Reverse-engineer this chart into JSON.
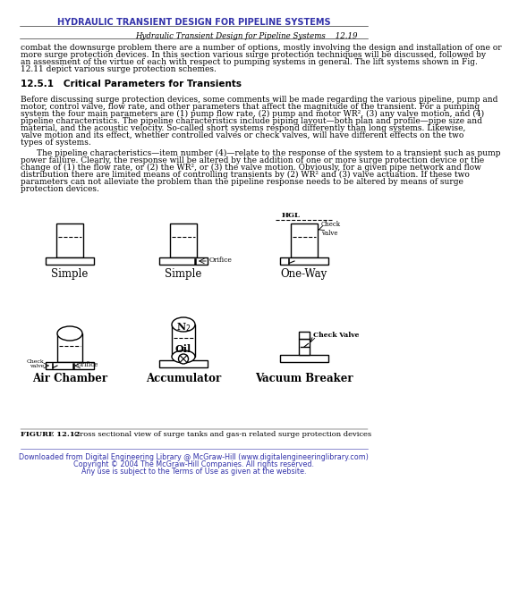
{
  "title": "HYDRAULIC TRANSIENT DESIGN FOR PIPELINE SYSTEMS",
  "title_color": "#3333aa",
  "header_text": "Hydraulic Transient Design for Pipeline Systems",
  "page_num": "12.19",
  "section": "12.5.1   Critical Parameters for Transients",
  "intro_text": "combat the downsurge problem there are a number of options, mostly involving the design and installation of one or more surge protection devices. In this section various surge protection techniques will be discussed, followed by an assessment of the virtue of each with respect to pumping systems in general. The lift systems shown in Fig. 12.11 depict various surge protection schemes.",
  "para1": "Before discussing surge protection devices, some comments will be made regarding the various pipeline, pump and motor, control valve, flow rate, and other parameters that affect the magnitude of the transient. For a pumping system the four main parameters are (1) pump flow rate, (2) pump and motor WR², (3) any valve motion, and (4) pipeline characteristics. The pipeline characteristics include piping layout—both plan and profile—pipe size and material, and the acoustic velocity. So-called short systems respond differently than long systems. Likewise, valve motion and its effect, whether controlled valves or check valves, will have different effects on the two types of systems.",
  "para2": "The pipeline characteristics—item number (4)—relate to the response of the system to a transient such as pump power failure. Clearly, the response will be altered by the addition of one or more surge protection device or the change of (1) the flow rate, or (2) the WR², or (3) the valve motion. Obviously, for a given pipe network and flow distribution there are limited means of controlling transients by (2) WR² and (3) valve actuation. If these two parameters can not alleviate the problem than the pipeline response needs to be altered by means of surge protection devices.",
  "fig_caption_bold": "FIGURE 12.12",
  "fig_caption_rest": "   Cross sectional view of surge tanks and gas-n related surge protection devices",
  "footer_line1": "Downloaded from Digital Engineering Library @ McGraw-Hill (www.digitalengineeringlibrary.com)",
  "footer_line2": "Copyright © 2004 The McGraw-Hill Companies. All rights reserved.",
  "footer_line3": "Any use is subject to the Terms of Use as given at the website.",
  "footer_color": "#3333aa",
  "bg_color": "#ffffff",
  "text_color": "#000000",
  "labels_row1": [
    "Simple",
    "Simple",
    "One-Way"
  ],
  "labels_row2": [
    "Air Chamber",
    "Accumulator",
    "Vacuum Breaker"
  ]
}
